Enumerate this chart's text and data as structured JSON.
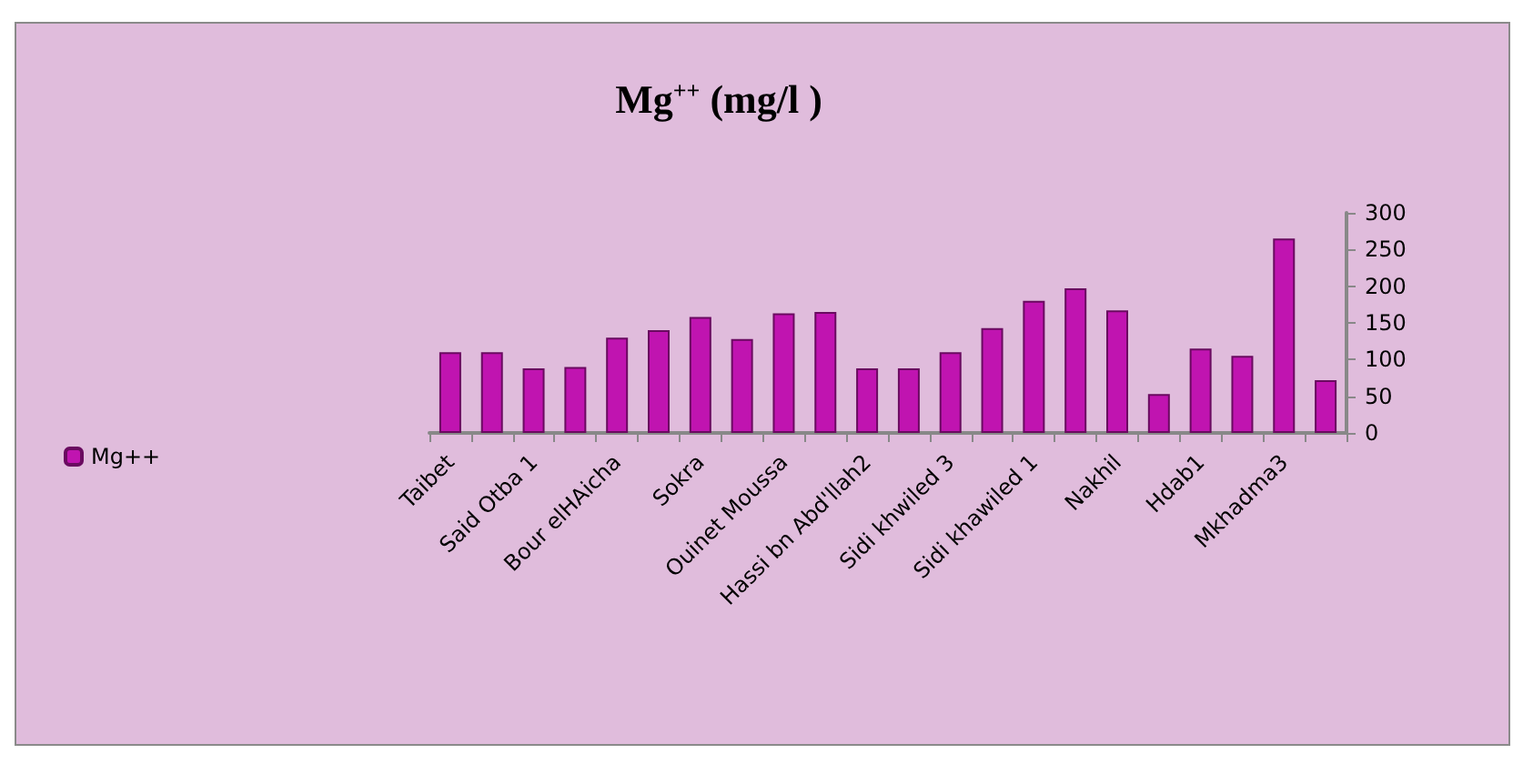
{
  "chart_data": {
    "type": "bar",
    "title": "Mg$^{++}$ (mg/l )",
    "categories": [
      "Taibet",
      null,
      "Said Otba 1",
      null,
      "Bour elHAicha",
      null,
      "Sokra",
      null,
      "Ouinet Moussa",
      null,
      "Hassi bn Abd'llah2",
      null,
      "Sidi khwiled 3",
      null,
      "Sidi khawiled 1",
      null,
      "Nakhil",
      null,
      "Hdab1",
      null,
      "Mkhadma3",
      null
    ],
    "series": [
      {
        "name": "Mg++",
        "color": "#c014b0",
        "values": [
          110,
          110,
          88,
          90,
          130,
          140,
          158,
          128,
          163,
          165,
          88,
          88,
          110,
          143,
          180,
          197,
          167,
          53,
          115,
          105,
          265,
          72
        ]
      }
    ],
    "ylim": [
      0,
      300
    ],
    "yticks": [
      0,
      50,
      100,
      150,
      200,
      250,
      300
    ],
    "grid": false,
    "legend": "left"
  }
}
